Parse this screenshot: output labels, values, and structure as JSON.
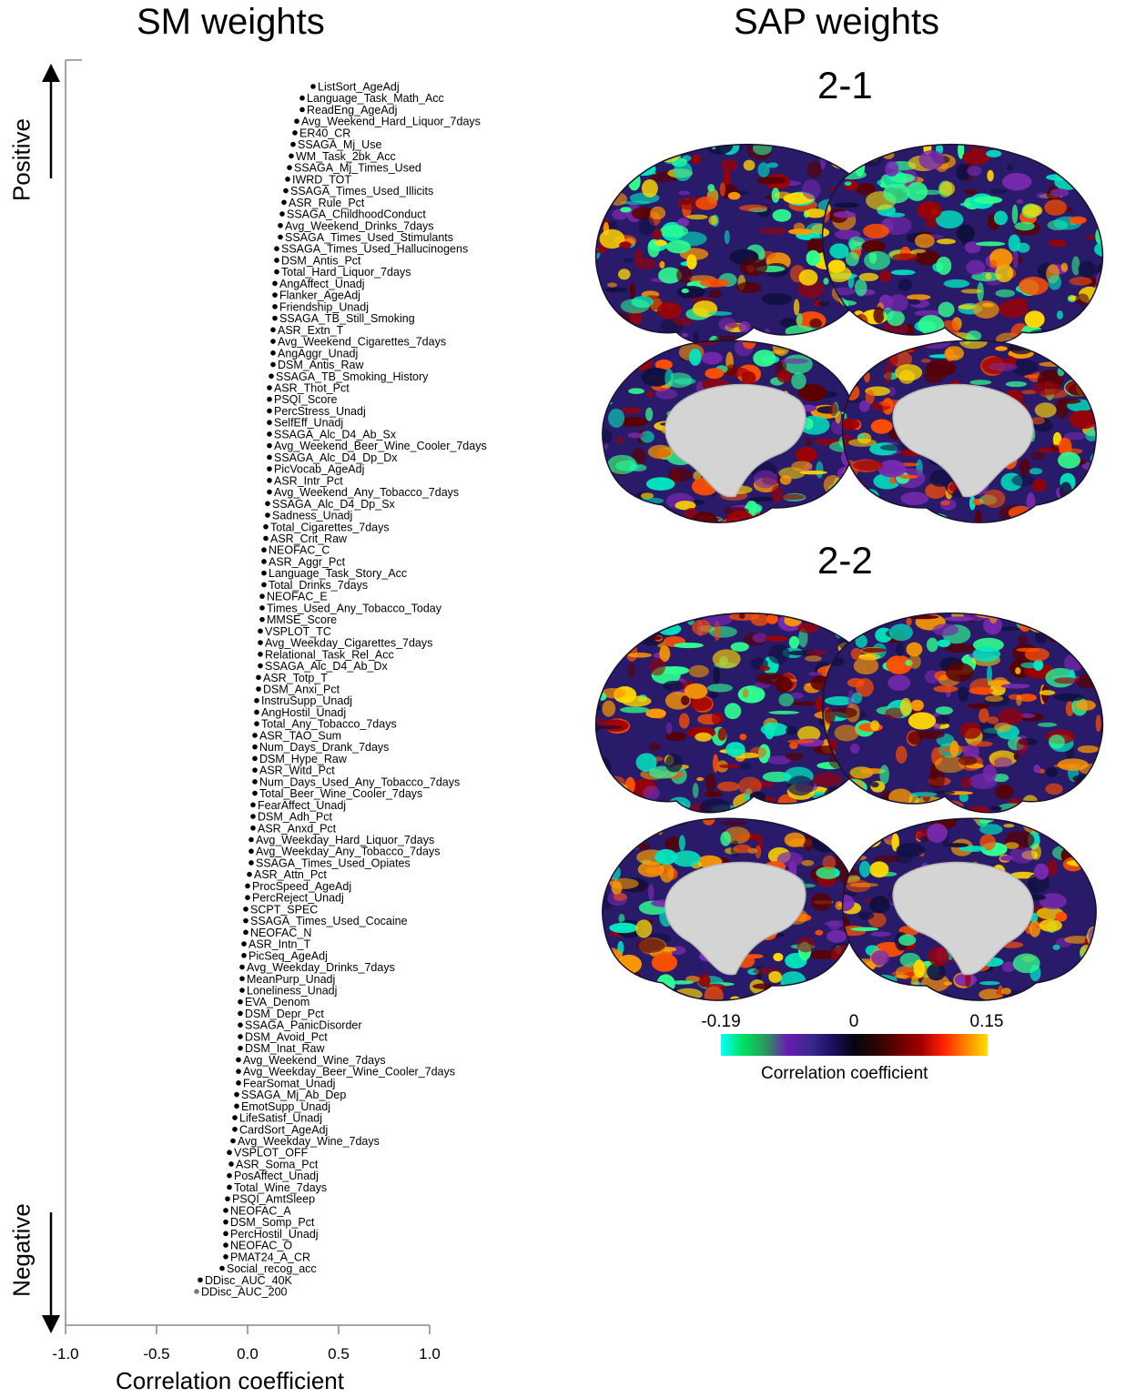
{
  "left_panel": {
    "title": "SM weights",
    "positive_label": "Positive",
    "negative_label": "Negative"
  },
  "right_panel": {
    "title": "SAP weights",
    "map1_title": "2-1",
    "map2_title": "2-2"
  },
  "colorbar": {
    "min_label": "-0.19",
    "mid_label": "0",
    "max_label": "0.15",
    "title": "Correlation coefficient",
    "colors": [
      "#00ffff",
      "#00e060",
      "#2a9a5a",
      "#6a1ab0",
      "#3a2a90",
      "#1a1060",
      "#050510",
      "#2a0505",
      "#6a0000",
      "#a00000",
      "#ff2000",
      "#ff8000",
      "#ffe000"
    ],
    "min": -0.19,
    "max": 0.15
  },
  "brain_colors": {
    "base": "#2a1a6a",
    "medial_wall": "#d4d4d4",
    "blobs": [
      "#00e8c0",
      "#30ff90",
      "#ff5000",
      "#ff9a00",
      "#ffd800",
      "#a00000",
      "#5a0000",
      "#7a2ab0",
      "#101040"
    ]
  },
  "chart_data": {
    "type": "scatter",
    "xlabel": "Correlation coefficient",
    "xlim": [
      -1.0,
      1.0
    ],
    "xticks": [
      -1.0,
      -0.5,
      0.0,
      0.5,
      1.0
    ],
    "xtick_labels": [
      "-1.0",
      "-0.5",
      "0.0",
      "0.5",
      "1.0"
    ],
    "points": [
      {
        "label": "ListSort_AgeAdj",
        "x": 0.36
      },
      {
        "label": "Language_Task_Math_Acc",
        "x": 0.3
      },
      {
        "label": "ReadEng_AgeAdj",
        "x": 0.3
      },
      {
        "label": "Avg_Weekend_Hard_Liquor_7days",
        "x": 0.27
      },
      {
        "label": "ER40_CR",
        "x": 0.26
      },
      {
        "label": "SSAGA_Mj_Use",
        "x": 0.25
      },
      {
        "label": "WM_Task_2bk_Acc",
        "x": 0.24
      },
      {
        "label": "SSAGA_Mj_Times_Used",
        "x": 0.23
      },
      {
        "label": "IWRD_TOT",
        "x": 0.22
      },
      {
        "label": "SSAGA_Times_Used_Illicits",
        "x": 0.21
      },
      {
        "label": "ASR_Rule_Pct",
        "x": 0.2
      },
      {
        "label": "SSAGA_ChildhoodConduct",
        "x": 0.19
      },
      {
        "label": "Avg_Weekend_Drinks_7days",
        "x": 0.18
      },
      {
        "label": "SSAGA_Times_Used_Stimulants",
        "x": 0.18
      },
      {
        "label": "SSAGA_Times_Used_Hallucinogens",
        "x": 0.16
      },
      {
        "label": "DSM_Antis_Pct",
        "x": 0.16
      },
      {
        "label": "Total_Hard_Liquor_7days",
        "x": 0.16
      },
      {
        "label": "AngAffect_Unadj",
        "x": 0.15
      },
      {
        "label": "Flanker_AgeAdj",
        "x": 0.15
      },
      {
        "label": "Friendship_Unadj",
        "x": 0.15
      },
      {
        "label": "SSAGA_TB_Still_Smoking",
        "x": 0.15
      },
      {
        "label": "ASR_Extn_T",
        "x": 0.14
      },
      {
        "label": "Avg_Weekend_Cigarettes_7days",
        "x": 0.14
      },
      {
        "label": "AngAggr_Unadj",
        "x": 0.14
      },
      {
        "label": "DSM_Antis_Raw",
        "x": 0.14
      },
      {
        "label": "SSAGA_TB_Smoking_History",
        "x": 0.13
      },
      {
        "label": "ASR_Thot_Pct",
        "x": 0.12
      },
      {
        "label": "PSQI_Score",
        "x": 0.12
      },
      {
        "label": "PercStress_Unadj",
        "x": 0.12
      },
      {
        "label": "SelfEff_Unadj",
        "x": 0.12
      },
      {
        "label": "SSAGA_Alc_D4_Ab_Sx",
        "x": 0.12
      },
      {
        "label": "Avg_Weekend_Beer_Wine_Cooler_7days",
        "x": 0.12
      },
      {
        "label": "SSAGA_Alc_D4_Dp_Dx",
        "x": 0.12
      },
      {
        "label": "PicVocab_AgeAdj",
        "x": 0.12
      },
      {
        "label": "ASR_Intr_Pct",
        "x": 0.12
      },
      {
        "label": "Avg_Weekend_Any_Tobacco_7days",
        "x": 0.12
      },
      {
        "label": "SSAGA_Alc_D4_Dp_Sx",
        "x": 0.11
      },
      {
        "label": "Sadness_Unadj",
        "x": 0.11
      },
      {
        "label": "Total_Cigarettes_7days",
        "x": 0.1
      },
      {
        "label": "ASR_Crit_Raw",
        "x": 0.1
      },
      {
        "label": "NEOFAC_C",
        "x": 0.09
      },
      {
        "label": "ASR_Aggr_Pct",
        "x": 0.09
      },
      {
        "label": "Language_Task_Story_Acc",
        "x": 0.09
      },
      {
        "label": "Total_Drinks_7days",
        "x": 0.09
      },
      {
        "label": "NEOFAC_E",
        "x": 0.08
      },
      {
        "label": "Times_Used_Any_Tobacco_Today",
        "x": 0.08
      },
      {
        "label": "MMSE_Score",
        "x": 0.08
      },
      {
        "label": "VSPLOT_TC",
        "x": 0.07
      },
      {
        "label": "Avg_Weekday_Cigarettes_7days",
        "x": 0.07
      },
      {
        "label": "Relational_Task_Rel_Acc",
        "x": 0.07
      },
      {
        "label": "SSAGA_Alc_D4_Ab_Dx",
        "x": 0.07
      },
      {
        "label": "ASR_Totp_T",
        "x": 0.06
      },
      {
        "label": "DSM_Anxi_Pct",
        "x": 0.06
      },
      {
        "label": "InstruSupp_Unadj",
        "x": 0.05
      },
      {
        "label": "AngHostil_Unadj",
        "x": 0.05
      },
      {
        "label": "Total_Any_Tobacco_7days",
        "x": 0.05
      },
      {
        "label": "ASR_TAO_Sum",
        "x": 0.04
      },
      {
        "label": "Num_Days_Drank_7days",
        "x": 0.04
      },
      {
        "label": "DSM_Hype_Raw",
        "x": 0.04
      },
      {
        "label": "ASR_Witd_Pct",
        "x": 0.04
      },
      {
        "label": "Num_Days_Used_Any_Tobacco_7days",
        "x": 0.04
      },
      {
        "label": "Total_Beer_Wine_Cooler_7days",
        "x": 0.04
      },
      {
        "label": "FearAffect_Unadj",
        "x": 0.03
      },
      {
        "label": "DSM_Adh_Pct",
        "x": 0.03
      },
      {
        "label": "ASR_Anxd_Pct",
        "x": 0.03
      },
      {
        "label": "Avg_Weekday_Hard_Liquor_7days",
        "x": 0.02
      },
      {
        "label": "Avg_Weekday_Any_Tobacco_7days",
        "x": 0.02
      },
      {
        "label": "SSAGA_Times_Used_Opiates",
        "x": 0.02
      },
      {
        "label": "ASR_Attn_Pct",
        "x": 0.01
      },
      {
        "label": "ProcSpeed_AgeAdj",
        "x": 0.0
      },
      {
        "label": "PercReject_Unadj",
        "x": 0.0
      },
      {
        "label": "SCPT_SPEC",
        "x": -0.01
      },
      {
        "label": "SSAGA_Times_Used_Cocaine",
        "x": -0.01
      },
      {
        "label": "NEOFAC_N",
        "x": -0.01
      },
      {
        "label": "ASR_Intn_T",
        "x": -0.02
      },
      {
        "label": "PicSeq_AgeAdj",
        "x": -0.02
      },
      {
        "label": "Avg_Weekday_Drinks_7days",
        "x": -0.03
      },
      {
        "label": "MeanPurp_Unadj",
        "x": -0.03
      },
      {
        "label": "Loneliness_Unadj",
        "x": -0.03
      },
      {
        "label": "EVA_Denom",
        "x": -0.04
      },
      {
        "label": "DSM_Depr_Pct",
        "x": -0.04
      },
      {
        "label": "SSAGA_PanicDisorder",
        "x": -0.04
      },
      {
        "label": "DSM_Avoid_Pct",
        "x": -0.04
      },
      {
        "label": "DSM_Inat_Raw",
        "x": -0.04
      },
      {
        "label": "Avg_Weekend_Wine_7days",
        "x": -0.05
      },
      {
        "label": "Avg_Weekday_Beer_Wine_Cooler_7days",
        "x": -0.05
      },
      {
        "label": "FearSomat_Unadj",
        "x": -0.05
      },
      {
        "label": "SSAGA_Mj_Ab_Dep",
        "x": -0.06
      },
      {
        "label": "EmotSupp_Unadj",
        "x": -0.06
      },
      {
        "label": "LifeSatisf_Unadj",
        "x": -0.07
      },
      {
        "label": "CardSort_AgeAdj",
        "x": -0.07
      },
      {
        "label": "Avg_Weekday_Wine_7days",
        "x": -0.08
      },
      {
        "label": "VSPLOT_OFF",
        "x": -0.1
      },
      {
        "label": "ASR_Soma_Pct",
        "x": -0.09
      },
      {
        "label": "PosAffect_Unadj",
        "x": -0.1
      },
      {
        "label": "Total_Wine_7days",
        "x": -0.1
      },
      {
        "label": "PSQI_AmtSleep",
        "x": -0.11
      },
      {
        "label": "NEOFAC_A",
        "x": -0.12
      },
      {
        "label": "DSM_Somp_Pct",
        "x": -0.12
      },
      {
        "label": "PercHostil_Unadj",
        "x": -0.12
      },
      {
        "label": "NEOFAC_O",
        "x": -0.12
      },
      {
        "label": "PMAT24_A_CR",
        "x": -0.12
      },
      {
        "label": "Social_recog_acc",
        "x": -0.14
      },
      {
        "label": "DDisc_AUC_40K",
        "x": -0.26
      },
      {
        "label": "DDisc_AUC_200",
        "x": -0.28
      }
    ]
  }
}
